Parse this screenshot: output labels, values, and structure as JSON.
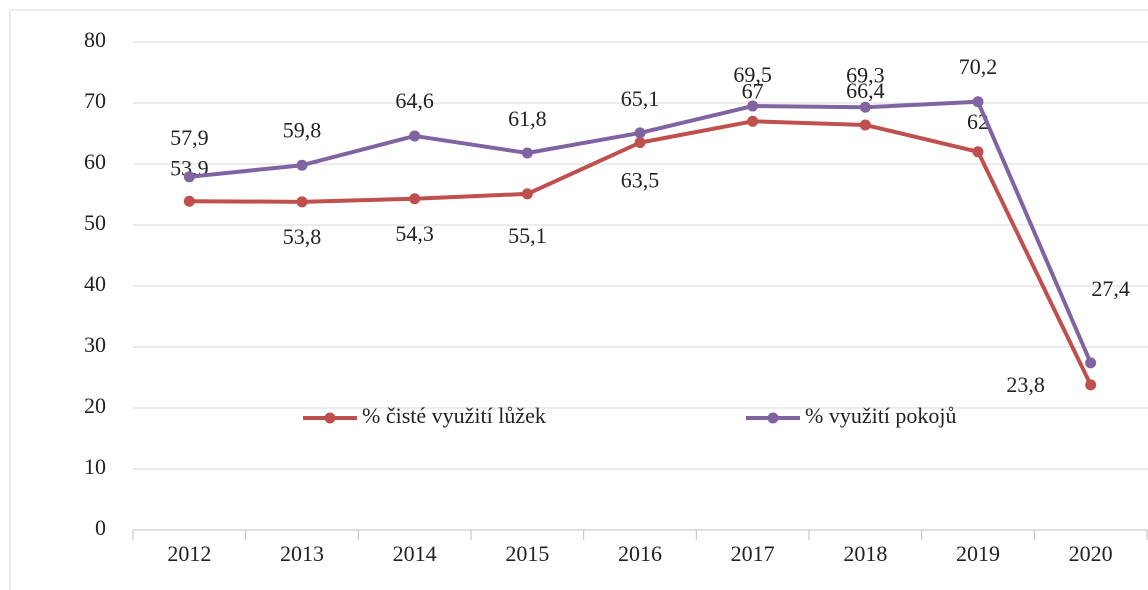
{
  "chart_data": {
    "type": "line",
    "categories": [
      "2012",
      "2013",
      "2014",
      "2015",
      "2016",
      "2017",
      "2018",
      "2019",
      "2020"
    ],
    "series": [
      {
        "name": "% čisté využití lůžek",
        "color": "#c0504d",
        "values": [
          53.9,
          53.8,
          54.3,
          55.1,
          63.5,
          67,
          66.4,
          62,
          23.8
        ],
        "value_labels": [
          "53,9",
          "53,8",
          "54,3",
          "55,1",
          "63,5",
          "67",
          "66,4",
          "62",
          "23,8"
        ]
      },
      {
        "name": "% využití pokojů",
        "color": "#8064a2",
        "values": [
          57.9,
          59.8,
          64.6,
          61.8,
          65.1,
          69.5,
          69.3,
          70.2,
          27.4
        ],
        "value_labels": [
          "57,9",
          "59,8",
          "64,6",
          "61,8",
          "65,1",
          "69,5",
          "69,3",
          "70,2",
          "27,4"
        ]
      }
    ],
    "ylim": [
      0,
      80
    ],
    "yticks": [
      0,
      10,
      20,
      30,
      40,
      50,
      60,
      70,
      80
    ],
    "grid": true
  }
}
